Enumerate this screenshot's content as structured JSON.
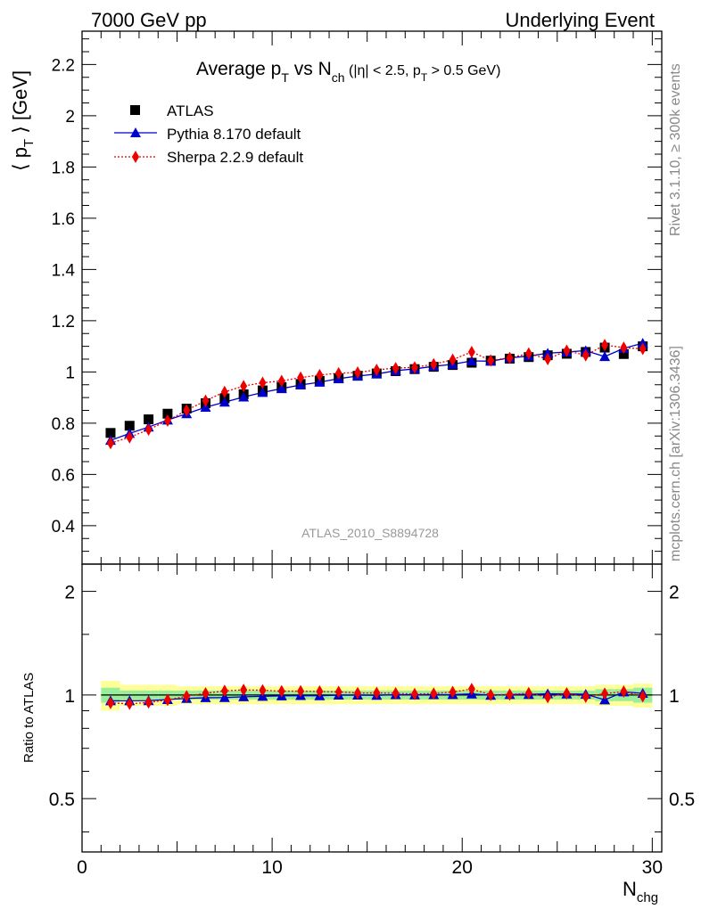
{
  "header": {
    "left": "7000 GeV pp",
    "right": "Underlying Event"
  },
  "side_labels": {
    "rivet": "Rivet 3.1.10, ≥ 300k events",
    "mcplots": "mcplots.cern.ch [arXiv:1306.3436]"
  },
  "colors": {
    "data": "#000000",
    "pythia": "#0000cc",
    "sherpa": "#ee0000",
    "band_inner": "#99ee99",
    "band_outer": "#ffff99"
  },
  "chart_data": [
    {
      "type": "scatter",
      "title": {
        "main_a": "Average p",
        "main_a_sub": "T",
        "main_b": " vs N",
        "main_b_sub": "ch",
        "cut_a": " (|η| < 2.5, p",
        "cut_a_sub": "T",
        "cut_b": " > 0.5 GeV)"
      },
      "ylabel": {
        "a": "⟨ p",
        "sub": "T",
        "b": " ⟩ [GeV]"
      },
      "watermark": "ATLAS_2010_S8894728",
      "xlim": [
        0,
        30.5
      ],
      "ylim": [
        0.25,
        2.33
      ],
      "yticks": [
        0.4,
        0.6,
        0.8,
        1,
        1.2,
        1.4,
        1.6,
        1.8,
        2,
        2.2
      ],
      "ytick_labels": [
        "0.4",
        "0.6",
        "0.8",
        "1",
        "1.2",
        "1.4",
        "1.6",
        "1.8",
        "2",
        "2.2"
      ],
      "legend_position": "top-left",
      "x": [
        1.5,
        2.5,
        3.5,
        4.5,
        5.5,
        6.5,
        7.5,
        8.5,
        9.5,
        10.5,
        11.5,
        12.5,
        13.5,
        14.5,
        15.5,
        16.5,
        17.5,
        18.5,
        19.5,
        20.5,
        21.5,
        22.5,
        23.5,
        24.5,
        25.5,
        26.5,
        27.5,
        28.5,
        29.5
      ],
      "series": [
        {
          "name": "ATLAS",
          "values": [
            0.762,
            0.79,
            0.815,
            0.837,
            0.857,
            0.878,
            0.897,
            0.913,
            0.928,
            0.941,
            0.953,
            0.965,
            0.975,
            0.985,
            0.994,
            1.003,
            1.011,
            1.02,
            1.027,
            1.036,
            1.044,
            1.052,
            1.058,
            1.065,
            1.071,
            1.078,
            1.095,
            1.07,
            1.1
          ]
        },
        {
          "name": "Pythia 8.170 default",
          "values": [
            0.733,
            0.76,
            0.785,
            0.812,
            0.837,
            0.862,
            0.882,
            0.902,
            0.92,
            0.935,
            0.949,
            0.96,
            0.974,
            0.984,
            0.992,
            1.005,
            1.012,
            1.022,
            1.03,
            1.043,
            1.042,
            1.055,
            1.062,
            1.073,
            1.078,
            1.083,
            1.06,
            1.092,
            1.112
          ]
        },
        {
          "name": "Sherpa 2.2.9 default",
          "values": [
            0.722,
            0.745,
            0.775,
            0.81,
            0.85,
            0.888,
            0.922,
            0.945,
            0.958,
            0.965,
            0.978,
            0.988,
            0.995,
            0.998,
            1.008,
            1.015,
            1.018,
            1.03,
            1.048,
            1.078,
            1.045,
            1.055,
            1.072,
            1.05,
            1.083,
            1.065,
            1.105,
            1.095,
            1.09
          ]
        }
      ]
    },
    {
      "type": "scatter",
      "ylabel": "Ratio to ATLAS",
      "xlabel": {
        "a": "N",
        "sub": "chg"
      },
      "xlim": [
        0,
        30.5
      ],
      "xticks": [
        0,
        10,
        20,
        30
      ],
      "xtick_labels": [
        "0",
        "10",
        "20",
        "30"
      ],
      "ylim": [
        0.35,
        2.4
      ],
      "yticks": [
        0.5,
        1,
        2
      ],
      "ytick_labels": [
        "0.5",
        "1",
        "2"
      ],
      "reference": 1,
      "x": [
        1.5,
        2.5,
        3.5,
        4.5,
        5.5,
        6.5,
        7.5,
        8.5,
        9.5,
        10.5,
        11.5,
        12.5,
        13.5,
        14.5,
        15.5,
        16.5,
        17.5,
        18.5,
        19.5,
        20.5,
        21.5,
        22.5,
        23.5,
        24.5,
        25.5,
        26.5,
        27.5,
        28.5,
        29.5
      ],
      "band_outer": [
        0.1,
        0.07,
        0.07,
        0.07,
        0.06,
        0.06,
        0.06,
        0.06,
        0.06,
        0.06,
        0.06,
        0.06,
        0.06,
        0.06,
        0.06,
        0.06,
        0.06,
        0.06,
        0.06,
        0.06,
        0.06,
        0.06,
        0.06,
        0.06,
        0.06,
        0.06,
        0.07,
        0.07,
        0.08
      ],
      "band_inner": [
        0.05,
        0.03,
        0.03,
        0.03,
        0.03,
        0.03,
        0.03,
        0.03,
        0.03,
        0.03,
        0.03,
        0.03,
        0.03,
        0.03,
        0.03,
        0.03,
        0.03,
        0.03,
        0.03,
        0.03,
        0.03,
        0.03,
        0.03,
        0.03,
        0.03,
        0.03,
        0.04,
        0.04,
        0.05
      ],
      "series": [
        {
          "name": "Pythia 8.170 default",
          "values": [
            0.962,
            0.962,
            0.963,
            0.97,
            0.977,
            0.982,
            0.983,
            0.988,
            0.991,
            0.994,
            0.996,
            0.995,
            0.999,
            0.999,
            0.998,
            1.002,
            1.001,
            1.002,
            1.003,
            1.007,
            0.998,
            1.003,
            1.004,
            1.008,
            1.007,
            1.005,
            0.968,
            1.021,
            1.011
          ]
        },
        {
          "name": "Sherpa 2.2.9 default",
          "values": [
            0.948,
            0.943,
            0.951,
            0.968,
            0.992,
            1.011,
            1.028,
            1.035,
            1.032,
            1.026,
            1.026,
            1.024,
            1.021,
            1.013,
            1.014,
            1.012,
            1.007,
            1.01,
            1.02,
            1.041,
            1.001,
            1.003,
            1.013,
            0.986,
            1.011,
            0.988,
            1.009,
            1.023,
            0.991
          ]
        }
      ]
    }
  ]
}
